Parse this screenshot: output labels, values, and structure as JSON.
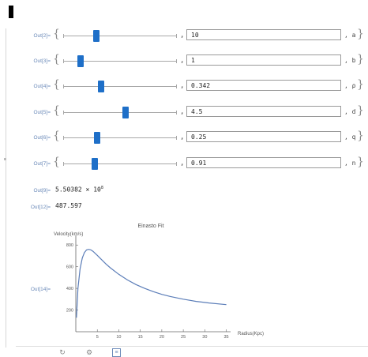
{
  "notebook": {
    "outputs": [
      {
        "label": "Out[2]=",
        "value": "10",
        "param": "a",
        "slider_fraction": 0.29
      },
      {
        "label": "Out[3]=",
        "value": "1",
        "param": "b",
        "slider_fraction": 0.15
      },
      {
        "label": "Out[4]=",
        "value": "0.342",
        "param": "ρ",
        "slider_fraction": 0.33
      },
      {
        "label": "Out[5]=",
        "value": "4.5",
        "param": "d",
        "slider_fraction": 0.55
      },
      {
        "label": "Out[6]=",
        "value": "0.25",
        "param": "q",
        "slider_fraction": 0.3
      },
      {
        "label": "Out[7]=",
        "value": "0.91",
        "param": "n",
        "slider_fraction": 0.28
      }
    ],
    "results": [
      {
        "label": "Out[9]=",
        "mantissa": "5.50382",
        "times": "×",
        "base": "10",
        "exponent": "8"
      },
      {
        "label": "Out[12]=",
        "value": "487.597"
      }
    ],
    "plot_label": "Out[14]="
  },
  "chart_data": {
    "type": "line",
    "title": "Einasto Fit",
    "xlabel": "Radius(Kpc)",
    "ylabel": "Velocity(km/s)",
    "xlim": [
      0,
      36
    ],
    "ylim": [
      0,
      860
    ],
    "x_ticks": [
      5,
      10,
      15,
      20,
      25,
      30,
      35
    ],
    "y_ticks": [
      200,
      400,
      600,
      800
    ],
    "series": [
      {
        "color": "#5b7db8",
        "x": [
          0.15,
          0.5,
          1,
          1.5,
          2,
          2.5,
          3,
          3.5,
          4,
          5,
          6,
          7,
          8,
          10,
          12,
          14,
          16,
          18,
          20,
          22,
          25,
          28,
          31,
          35
        ],
        "y": [
          130,
          400,
          580,
          680,
          730,
          755,
          760,
          755,
          742,
          705,
          665,
          625,
          590,
          530,
          478,
          435,
          400,
          370,
          345,
          325,
          300,
          280,
          265,
          250
        ]
      }
    ]
  },
  "toolbar": {
    "icons": [
      "rotate-icon",
      "gear-icon",
      "notebook-icon"
    ]
  }
}
